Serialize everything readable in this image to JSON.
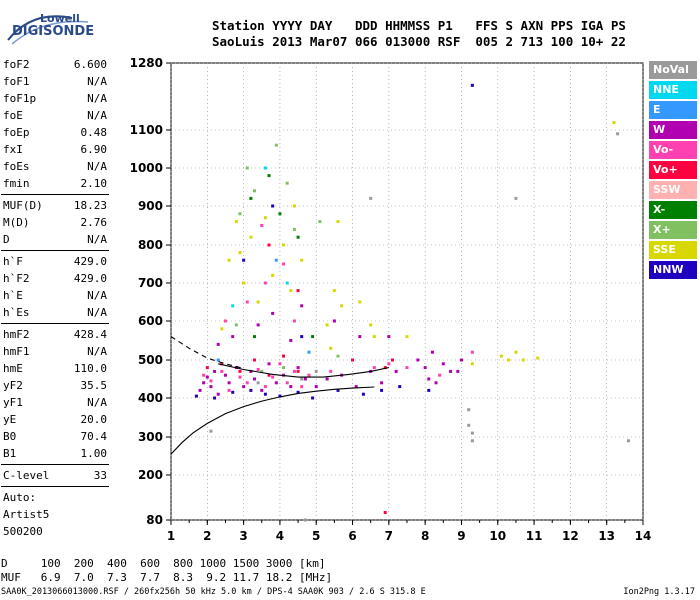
{
  "logo": {
    "line1": "Lowell",
    "line2": "DIGISONDE"
  },
  "header": {
    "labels": "Station YYYY DAY   DDD HHMMSS P1   FFS S AXN PPS IGA PS",
    "values": "SaoLuis 2013 Mar07 066 013000 RSF  005 2 713 100 10+ 22"
  },
  "params": {
    "group1": [
      {
        "name": "foF2",
        "value": "6.600"
      },
      {
        "name": "foF1",
        "value": "N/A"
      },
      {
        "name": "foF1p",
        "value": "N/A"
      },
      {
        "name": "foE",
        "value": "N/A"
      },
      {
        "name": "foEp",
        "value": "0.48"
      },
      {
        "name": "fxI",
        "value": "6.90"
      },
      {
        "name": "foEs",
        "value": "N/A"
      },
      {
        "name": "fmin",
        "value": "2.10"
      }
    ],
    "group2": [
      {
        "name": "MUF(D)",
        "value": "18.23"
      },
      {
        "name": "M(D)",
        "value": "2.76"
      },
      {
        "name": "D",
        "value": "N/A"
      }
    ],
    "group3": [
      {
        "name": "h`F",
        "value": "429.0"
      },
      {
        "name": "h`F2",
        "value": "429.0"
      },
      {
        "name": "h`E",
        "value": "N/A"
      },
      {
        "name": "h`Es",
        "value": "N/A"
      }
    ],
    "group4": [
      {
        "name": "hmF2",
        "value": "428.4"
      },
      {
        "name": "hmF1",
        "value": "N/A"
      },
      {
        "name": "hmE",
        "value": "110.0"
      },
      {
        "name": "yF2",
        "value": "35.5"
      },
      {
        "name": "yF1",
        "value": "N/A"
      },
      {
        "name": "yE",
        "value": "20.0"
      },
      {
        "name": "B0",
        "value": "70.4"
      },
      {
        "name": "B1",
        "value": "1.00"
      }
    ],
    "group5": [
      {
        "name": "C-level",
        "value": "33"
      }
    ],
    "auto": [
      "Auto:",
      "Artist5",
      "500200"
    ]
  },
  "legend": [
    {
      "label": "NoVal",
      "color": "#9a9a9a"
    },
    {
      "label": "NNE",
      "color": "#00d8f0"
    },
    {
      "label": "E",
      "color": "#3399ff"
    },
    {
      "label": "W",
      "color": "#b000b0"
    },
    {
      "label": "Vo-",
      "color": "#ff40b0"
    },
    {
      "label": "Vo+",
      "color": "#ff0040"
    },
    {
      "label": "SSW",
      "color": "#ffb0b0"
    },
    {
      "label": "X-",
      "color": "#008000"
    },
    {
      "label": "X+",
      "color": "#80c060"
    },
    {
      "label": "SSE",
      "color": "#d8d800"
    },
    {
      "label": "NNW",
      "color": "#2000c0"
    }
  ],
  "footer": {
    "d_line": "D     100  200  400  600  800 1000 1500 3000 [km]",
    "muf_line": "MUF   6.9  7.0  7.3  7.7  8.3  9.2 11.7 18.2 [MHz]",
    "source": "SAA0K_2013066013000.RSF / 260fx256h 50 kHz 5.0 km / DPS-4 SAA0K 903 / 2.6 S 315.8 E",
    "version": "Ion2Png 1.3.17"
  },
  "chart_data": {
    "type": "scatter",
    "title": "",
    "xlabel": "",
    "ylabel": "",
    "xlim": [
      1,
      14
    ],
    "ylim": [
      80,
      1280
    ],
    "x_ticks": [
      1,
      2,
      3,
      4,
      5,
      6,
      7,
      8,
      9,
      10,
      11,
      12,
      13,
      14
    ],
    "y_ticks": [
      80,
      200,
      300,
      400,
      500,
      600,
      700,
      800,
      900,
      1000,
      1100,
      1280
    ],
    "grid": true,
    "legend_placement": "right",
    "series": [
      {
        "name": "W",
        "color": "#b000b0",
        "points": [
          [
            1.8,
            420
          ],
          [
            1.9,
            440
          ],
          [
            2.0,
            455
          ],
          [
            2.1,
            430
          ],
          [
            2.2,
            470
          ],
          [
            2.3,
            410
          ],
          [
            2.5,
            460
          ],
          [
            2.6,
            440
          ],
          [
            2.8,
            480
          ],
          [
            3.0,
            430
          ],
          [
            3.2,
            470
          ],
          [
            3.3,
            450
          ],
          [
            3.5,
            420
          ],
          [
            3.7,
            490
          ],
          [
            3.9,
            440
          ],
          [
            4.1,
            460
          ],
          [
            4.3,
            430
          ],
          [
            4.5,
            480
          ],
          [
            4.7,
            450
          ],
          [
            5.0,
            430
          ],
          [
            5.3,
            450
          ],
          [
            5.7,
            460
          ],
          [
            6.1,
            430
          ],
          [
            6.5,
            470
          ],
          [
            6.8,
            440
          ],
          [
            7.2,
            470
          ],
          [
            7.8,
            500
          ],
          [
            8.0,
            480
          ],
          [
            8.2,
            520
          ],
          [
            8.5,
            490
          ],
          [
            8.7,
            470
          ],
          [
            9.0,
            500
          ],
          [
            2.3,
            540
          ],
          [
            2.7,
            560
          ],
          [
            3.4,
            590
          ],
          [
            3.8,
            620
          ],
          [
            4.3,
            550
          ],
          [
            4.6,
            640
          ],
          [
            5.5,
            600
          ],
          [
            6.2,
            560
          ],
          [
            7.0,
            560
          ],
          [
            8.1,
            450
          ],
          [
            8.3,
            440
          ],
          [
            8.9,
            470
          ]
        ]
      },
      {
        "name": "Vo-",
        "color": "#ff40b0",
        "points": [
          [
            1.9,
            460
          ],
          [
            2.1,
            445
          ],
          [
            2.4,
            470
          ],
          [
            2.6,
            420
          ],
          [
            2.9,
            455
          ],
          [
            3.1,
            440
          ],
          [
            3.4,
            475
          ],
          [
            3.6,
            430
          ],
          [
            3.8,
            455
          ],
          [
            4.0,
            490
          ],
          [
            4.2,
            440
          ],
          [
            4.4,
            470
          ],
          [
            4.6,
            430
          ],
          [
            4.8,
            460
          ],
          [
            5.4,
            470
          ],
          [
            6.6,
            480
          ],
          [
            7.0,
            490
          ],
          [
            7.5,
            480
          ],
          [
            8.4,
            460
          ],
          [
            9.3,
            520
          ],
          [
            2.5,
            600
          ],
          [
            3.1,
            650
          ],
          [
            3.6,
            700
          ],
          [
            4.4,
            600
          ],
          [
            4.1,
            750
          ],
          [
            3.5,
            850
          ]
        ]
      },
      {
        "name": "Vo+",
        "color": "#ff0040",
        "points": [
          [
            2.0,
            480
          ],
          [
            2.4,
            490
          ],
          [
            2.9,
            470
          ],
          [
            3.3,
            500
          ],
          [
            3.7,
            460
          ],
          [
            4.1,
            510
          ],
          [
            4.5,
            470
          ],
          [
            6.0,
            500
          ],
          [
            6.9,
            480
          ],
          [
            7.1,
            500
          ],
          [
            3.0,
            700
          ],
          [
            3.7,
            800
          ],
          [
            4.5,
            680
          ],
          [
            6.9,
            100
          ]
        ]
      },
      {
        "name": "NNW",
        "color": "#2000c0",
        "points": [
          [
            1.7,
            405
          ],
          [
            2.2,
            400
          ],
          [
            2.7,
            415
          ],
          [
            3.2,
            420
          ],
          [
            3.6,
            410
          ],
          [
            4.0,
            405
          ],
          [
            4.5,
            415
          ],
          [
            4.9,
            400
          ],
          [
            5.6,
            420
          ],
          [
            6.3,
            410
          ],
          [
            6.8,
            420
          ],
          [
            7.3,
            430
          ],
          [
            8.1,
            420
          ],
          [
            3.0,
            760
          ],
          [
            3.8,
            900
          ],
          [
            4.6,
            560
          ],
          [
            9.3,
            1220
          ]
        ]
      },
      {
        "name": "SSE",
        "color": "#d8d800",
        "points": [
          [
            2.8,
            860
          ],
          [
            2.9,
            780
          ],
          [
            3.0,
            700
          ],
          [
            3.2,
            820
          ],
          [
            3.4,
            650
          ],
          [
            3.6,
            870
          ],
          [
            3.8,
            720
          ],
          [
            4.1,
            800
          ],
          [
            4.4,
            900
          ],
          [
            4.6,
            760
          ],
          [
            4.3,
            680
          ],
          [
            5.3,
            590
          ],
          [
            5.5,
            680
          ],
          [
            5.7,
            640
          ],
          [
            5.4,
            530
          ],
          [
            6.2,
            650
          ],
          [
            6.5,
            590
          ],
          [
            6.6,
            560
          ],
          [
            7.5,
            560
          ],
          [
            9.3,
            490
          ],
          [
            10.3,
            500
          ],
          [
            10.5,
            520
          ],
          [
            10.7,
            500
          ],
          [
            11.1,
            505
          ],
          [
            10.1,
            510
          ],
          [
            2.6,
            760
          ],
          [
            2.4,
            580
          ],
          [
            5.6,
            860
          ],
          [
            13.2,
            1120
          ]
        ]
      },
      {
        "name": "X+",
        "color": "#80c060",
        "points": [
          [
            3.1,
            1000
          ],
          [
            3.9,
            1060
          ],
          [
            3.3,
            940
          ],
          [
            4.2,
            960
          ],
          [
            2.9,
            880
          ],
          [
            4.4,
            840
          ],
          [
            5.1,
            860
          ],
          [
            2.8,
            590
          ],
          [
            3.5,
            470
          ],
          [
            4.1,
            480
          ],
          [
            5.6,
            510
          ]
        ]
      },
      {
        "name": "X-",
        "color": "#008000",
        "points": [
          [
            3.2,
            920
          ],
          [
            3.7,
            980
          ],
          [
            4.0,
            880
          ],
          [
            4.5,
            820
          ],
          [
            3.3,
            560
          ],
          [
            4.9,
            560
          ]
        ]
      },
      {
        "name": "NNE",
        "color": "#00d8f0",
        "points": [
          [
            3.6,
            1000
          ],
          [
            4.2,
            700
          ],
          [
            2.7,
            640
          ]
        ]
      },
      {
        "name": "E",
        "color": "#3399ff",
        "points": [
          [
            3.9,
            760
          ],
          [
            2.3,
            500
          ],
          [
            4.8,
            520
          ]
        ]
      },
      {
        "name": "NoVal",
        "color": "#9a9a9a",
        "points": [
          [
            3.4,
            440
          ],
          [
            4.6,
            450
          ],
          [
            5.0,
            470
          ],
          [
            9.2,
            370
          ],
          [
            9.2,
            330
          ],
          [
            9.3,
            310
          ],
          [
            9.3,
            290
          ],
          [
            13.3,
            1090
          ],
          [
            13.6,
            290
          ],
          [
            4.7,
            80
          ],
          [
            6.5,
            920
          ],
          [
            2.1,
            315
          ],
          [
            10.5,
            920
          ]
        ]
      }
    ],
    "curves": [
      {
        "name": "profile",
        "style": "solid",
        "points": [
          [
            1.0,
            255
          ],
          [
            1.3,
            285
          ],
          [
            1.6,
            310
          ],
          [
            2.0,
            335
          ],
          [
            2.5,
            360
          ],
          [
            3.0,
            378
          ],
          [
            3.5,
            392
          ],
          [
            4.0,
            403
          ],
          [
            4.5,
            412
          ],
          [
            5.0,
            418
          ],
          [
            5.5,
            423
          ],
          [
            6.0,
            426
          ],
          [
            6.6,
            429
          ]
        ]
      },
      {
        "name": "trace",
        "style": "solid",
        "points": [
          [
            2.3,
            490
          ],
          [
            3.0,
            475
          ],
          [
            3.8,
            462
          ],
          [
            4.5,
            455
          ],
          [
            5.2,
            455
          ],
          [
            5.9,
            462
          ],
          [
            6.5,
            470
          ],
          [
            7.0,
            480
          ]
        ]
      },
      {
        "name": "trace-dashed",
        "style": "dashed",
        "points": [
          [
            1.0,
            560
          ],
          [
            1.5,
            530
          ],
          [
            2.0,
            505
          ],
          [
            2.5,
            490
          ],
          [
            3.0,
            478
          ]
        ]
      }
    ]
  }
}
